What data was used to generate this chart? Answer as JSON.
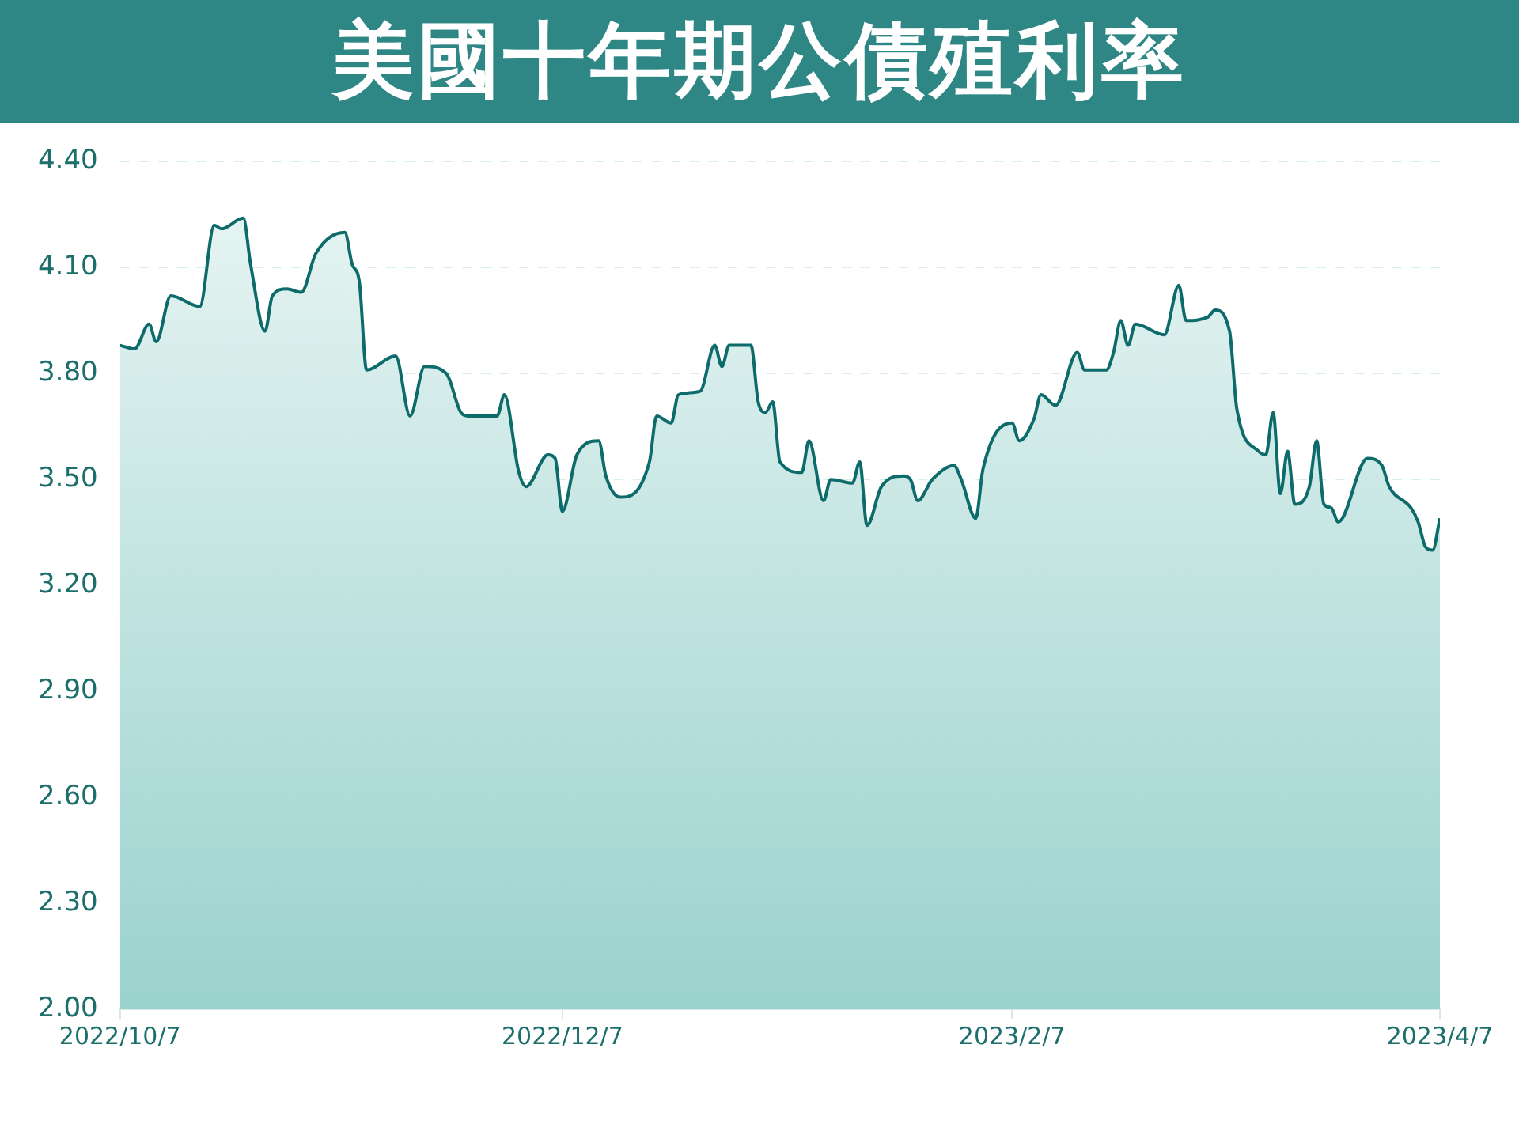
{
  "chart_data": {
    "type": "area",
    "title": "美國十年期公債殖利率",
    "x": [
      "2022-10-07",
      "2022-10-09",
      "2022-10-11",
      "2022-10-12",
      "2022-10-14",
      "2022-10-18",
      "2022-10-20",
      "2022-10-21",
      "2022-10-24",
      "2022-10-25",
      "2022-10-27",
      "2022-10-28",
      "2022-10-30",
      "2022-11-01",
      "2022-11-03",
      "2022-11-07",
      "2022-11-08",
      "2022-11-09",
      "2022-11-10",
      "2022-11-14",
      "2022-11-16",
      "2022-11-18",
      "2022-11-21",
      "2022-11-23",
      "2022-11-24",
      "2022-11-28",
      "2022-11-29",
      "2022-12-01",
      "2022-12-02",
      "2022-12-05",
      "2022-12-06",
      "2022-12-07",
      "2022-12-09",
      "2022-12-12",
      "2022-12-13",
      "2022-12-15",
      "2022-12-19",
      "2022-12-20",
      "2022-12-22",
      "2022-12-23",
      "2022-12-26",
      "2022-12-28",
      "2022-12-29",
      "2022-12-30",
      "2023-01-02",
      "2023-01-03",
      "2023-01-04",
      "2023-01-05",
      "2023-01-06",
      "2023-01-09",
      "2023-01-10",
      "2023-01-12",
      "2023-01-13",
      "2023-01-16",
      "2023-01-17",
      "2023-01-18",
      "2023-01-20",
      "2023-01-23",
      "2023-01-24",
      "2023-01-25",
      "2023-01-27",
      "2023-01-30",
      "2023-01-31",
      "2023-02-02",
      "2023-02-03",
      "2023-02-07",
      "2023-02-08",
      "2023-02-10",
      "2023-02-11",
      "2023-02-13",
      "2023-02-16",
      "2023-02-17",
      "2023-02-20",
      "2023-02-21",
      "2023-02-22",
      "2023-02-23",
      "2023-02-24",
      "2023-02-28",
      "2023-03-02",
      "2023-03-03",
      "2023-03-06",
      "2023-03-07",
      "2023-03-09",
      "2023-03-10",
      "2023-03-13",
      "2023-03-14",
      "2023-03-15",
      "2023-03-16",
      "2023-03-17",
      "2023-03-18",
      "2023-03-20",
      "2023-03-21",
      "2023-03-22",
      "2023-03-23",
      "2023-03-24",
      "2023-03-28",
      "2023-03-30",
      "2023-03-31",
      "2023-04-03",
      "2023-04-04",
      "2023-04-05",
      "2023-04-06",
      "2023-04-07"
    ],
    "series": [
      {
        "color": "#0e6b6b",
        "values": [
          3.88,
          3.87,
          3.94,
          3.89,
          4.02,
          3.99,
          4.22,
          4.21,
          4.24,
          4.11,
          3.92,
          4.02,
          4.04,
          4.03,
          4.14,
          4.2,
          4.11,
          4.06,
          3.81,
          3.85,
          3.68,
          3.82,
          3.8,
          3.69,
          3.68,
          3.68,
          3.74,
          3.52,
          3.48,
          3.57,
          3.56,
          3.41,
          3.57,
          3.61,
          3.51,
          3.45,
          3.55,
          3.68,
          3.66,
          3.74,
          3.75,
          3.88,
          3.82,
          3.88,
          3.88,
          3.72,
          3.69,
          3.72,
          3.55,
          3.52,
          3.61,
          3.44,
          3.5,
          3.49,
          3.55,
          3.37,
          3.48,
          3.51,
          3.5,
          3.44,
          3.5,
          3.54,
          3.5,
          3.39,
          3.53,
          3.66,
          3.61,
          3.67,
          3.74,
          3.71,
          3.86,
          3.81,
          3.81,
          3.86,
          3.95,
          3.88,
          3.94,
          3.91,
          4.05,
          3.95,
          3.96,
          3.98,
          3.92,
          3.7,
          3.58,
          3.57,
          3.69,
          3.46,
          3.58,
          3.43,
          3.48,
          3.61,
          3.43,
          3.42,
          3.38,
          3.56,
          3.54,
          3.48,
          3.42,
          3.38,
          3.31,
          3.3,
          3.39
        ]
      }
    ],
    "xlim": [
      "2022-10-07",
      "2023-04-07"
    ],
    "xticks": [
      {
        "value": "2022-10-07",
        "label": "2022/10/7"
      },
      {
        "value": "2022-12-07",
        "label": "2022/12/7"
      },
      {
        "value": "2023-02-07",
        "label": "2023/2/7"
      },
      {
        "value": "2023-04-07",
        "label": "2023/4/7"
      }
    ],
    "ylim": [
      2.0,
      4.4
    ],
    "yticks": [
      {
        "value": 2.0,
        "label": "2.00"
      },
      {
        "value": 2.3,
        "label": "2.30"
      },
      {
        "value": 2.6,
        "label": "2.60"
      },
      {
        "value": 2.9,
        "label": "2.90"
      },
      {
        "value": 3.2,
        "label": "3.20"
      },
      {
        "value": 3.5,
        "label": "3.50"
      },
      {
        "value": 3.8,
        "label": "3.80"
      },
      {
        "value": 4.1,
        "label": "4.10"
      },
      {
        "value": 4.4,
        "label": "4.40"
      }
    ],
    "grid": "y",
    "legend": false,
    "marker": "none",
    "line_style": "solid"
  }
}
